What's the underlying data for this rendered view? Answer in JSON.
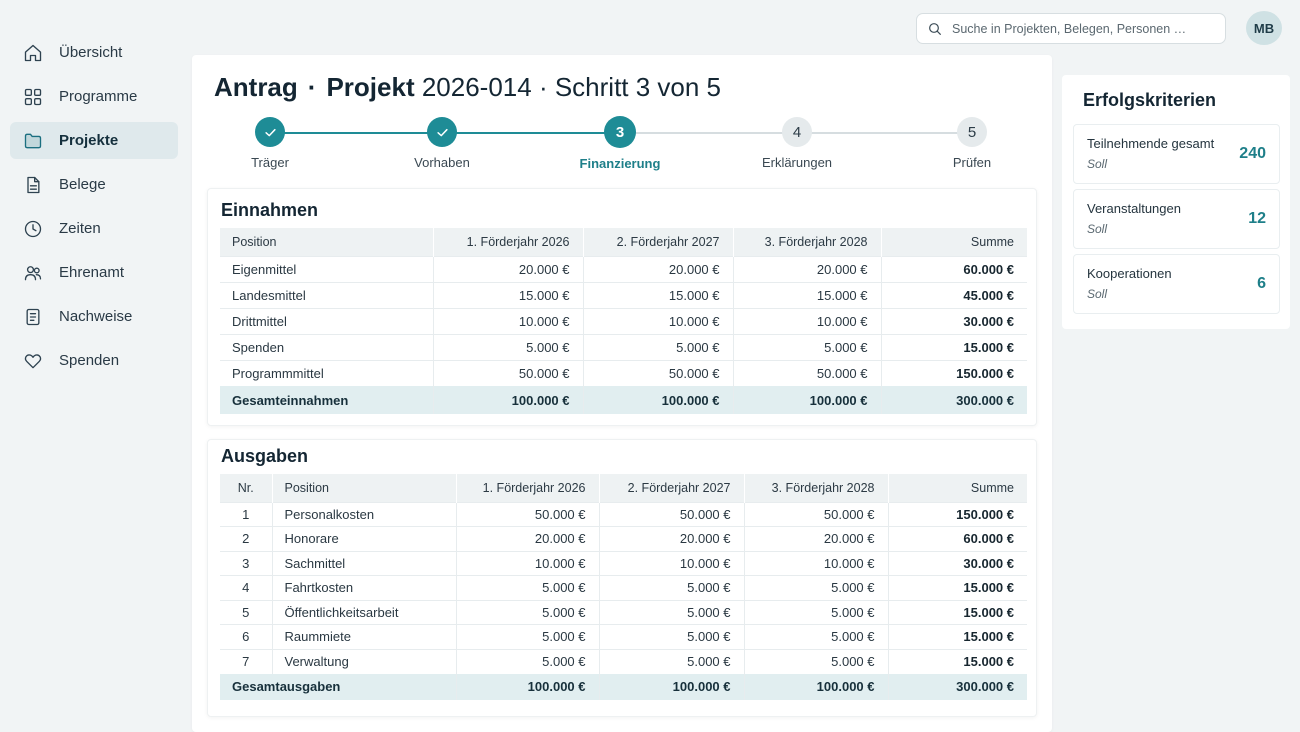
{
  "sidebar": {
    "items": [
      {
        "label": "Übersicht",
        "icon": "home-icon",
        "active": false
      },
      {
        "label": "Programme",
        "icon": "grid-icon",
        "active": false
      },
      {
        "label": "Projekte",
        "icon": "folder-icon",
        "active": true
      },
      {
        "label": "Belege",
        "icon": "document-icon",
        "active": false
      },
      {
        "label": "Zeiten",
        "icon": "clock-icon",
        "active": false
      },
      {
        "label": "Ehrenamt",
        "icon": "users-icon",
        "active": false
      },
      {
        "label": "Nachweise",
        "icon": "clipboard-icon",
        "active": false
      },
      {
        "label": "Spenden",
        "icon": "heart-icon",
        "active": false
      }
    ]
  },
  "search": {
    "placeholder": "Suche in Projekten, Belegen, Personen …",
    "value": ""
  },
  "user": {
    "initials": "MB"
  },
  "header": {
    "part1": "Antrag",
    "separator": "·",
    "part2": "Projekt",
    "part3": "2026-014 · Schritt 3 von 5"
  },
  "stepper": {
    "steps": [
      {
        "number": "1",
        "label": "Träger",
        "state": "done"
      },
      {
        "number": "2",
        "label": "Vorhaben",
        "state": "done"
      },
      {
        "number": "3",
        "label": "Finanzierung",
        "state": "current"
      },
      {
        "number": "4",
        "label": "Erklärungen",
        "state": "upcoming"
      },
      {
        "number": "5",
        "label": "Prüfen",
        "state": "upcoming"
      }
    ]
  },
  "einnahmen": {
    "title": "Einnahmen",
    "headers": [
      "Position",
      "1. Förderjahr 2026",
      "2. Förderjahr 2027",
      "3. Förderjahr 2028",
      "Summe"
    ],
    "rows": [
      [
        "Eigenmittel",
        "20.000 €",
        "20.000 €",
        "20.000 €",
        "60.000 €"
      ],
      [
        "Landesmittel",
        "15.000 €",
        "15.000 €",
        "15.000 €",
        "45.000 €"
      ],
      [
        "Drittmittel",
        "10.000 €",
        "10.000 €",
        "10.000 €",
        "30.000 €"
      ],
      [
        "Spenden",
        "5.000 €",
        "5.000 €",
        "5.000 €",
        "15.000 €"
      ],
      [
        "Programmmittel",
        "50.000 €",
        "50.000 €",
        "50.000 €",
        "150.000 €"
      ]
    ],
    "total": [
      "Gesamteinnahmen",
      "100.000 €",
      "100.000 €",
      "100.000 €",
      "300.000 €"
    ]
  },
  "ausgaben": {
    "title": "Ausgaben",
    "headers": [
      "Nr.",
      "Position",
      "1. Förderjahr 2026",
      "2. Förderjahr 2027",
      "3. Förderjahr 2028",
      "Summe"
    ],
    "rows": [
      [
        "1",
        "Personalkosten",
        "50.000 €",
        "50.000 €",
        "50.000 €",
        "150.000 €"
      ],
      [
        "2",
        "Honorare",
        "20.000 €",
        "20.000 €",
        "20.000 €",
        "60.000 €"
      ],
      [
        "3",
        "Sachmittel",
        "10.000 €",
        "10.000 €",
        "10.000 €",
        "30.000 €"
      ],
      [
        "4",
        "Fahrtkosten",
        "5.000 €",
        "5.000 €",
        "5.000 €",
        "15.000 €"
      ],
      [
        "5",
        "Öffentlichkeitsarbeit",
        "5.000 €",
        "5.000 €",
        "5.000 €",
        "15.000 €"
      ],
      [
        "6",
        "Raummiete",
        "5.000 €",
        "5.000 €",
        "5.000 €",
        "15.000 €"
      ],
      [
        "7",
        "Verwaltung",
        "5.000 €",
        "5.000 €",
        "5.000 €",
        "15.000 €"
      ]
    ],
    "total": [
      "Gesamtausgaben",
      "100.000 €",
      "100.000 €",
      "100.000 €",
      "300.000 €"
    ]
  },
  "criteria": {
    "title": "Erfolgskriterien",
    "items": [
      {
        "label": "Teilnehmende gesamt",
        "sub": "Soll",
        "value": "240"
      },
      {
        "label": "Veranstaltungen",
        "sub": "Soll",
        "value": "12"
      },
      {
        "label": "Kooperationen",
        "sub": "Soll",
        "value": "6"
      }
    ]
  },
  "colors": {
    "accent": "#1e8c96",
    "active_nav": "#dfe9ec",
    "total_row": "#e1eef0"
  }
}
